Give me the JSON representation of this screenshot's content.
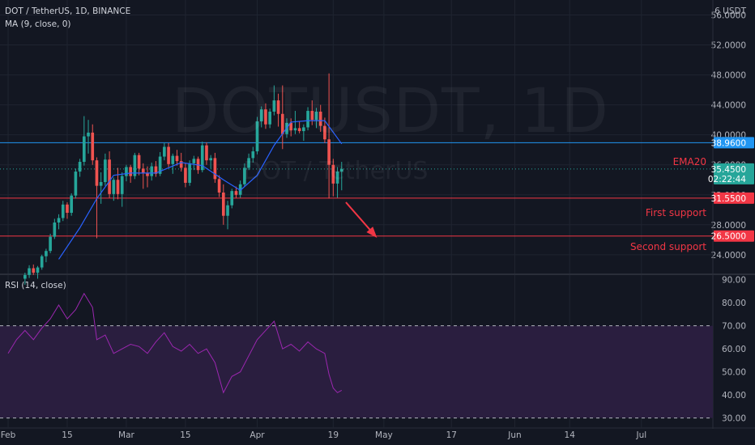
{
  "header": {
    "symbol_line": "DOT / TetherUS, 1D, BINANCE",
    "ma_line": "MA (9, close, 0)",
    "rsi_line": "RSI (14, close)",
    "watermark_main": "DOTUSDT, 1D",
    "watermark_sub": "DOT / TetherUS"
  },
  "annotations": {
    "ema_label": "EMA20",
    "first_support_label": "First support",
    "second_support_label": "Second support"
  },
  "colors": {
    "background": "#131722",
    "grid": "#1f2430",
    "up": "#26a69a",
    "down": "#ef5350",
    "ma": "#2962ff",
    "ema_line": "#2196f3",
    "support_line": "#f23645",
    "rsi_line": "#9c27b0",
    "rsi_band": "#2a1e3f",
    "axis_text": "#b2b5be"
  },
  "chart_data": {
    "type": "candlestick",
    "symbol": "DOT / TetherUS",
    "interval": "1D",
    "exchange": "BINANCE",
    "currency_label": "6 USDT",
    "price_axis": {
      "ticks": [
        "56.0000",
        "52.0000",
        "48.0000",
        "44.0000",
        "40.0000",
        "36.0000",
        "32.0000",
        "28.0000",
        "24.0000"
      ],
      "range": [
        21.5,
        58
      ]
    },
    "price_tags": [
      {
        "value": "38.9600",
        "color": "#2196f3"
      },
      {
        "value": "35.4500",
        "sub": "02:22:44",
        "color": "#26a69a"
      },
      {
        "value": "31.5500",
        "color": "#f23645"
      },
      {
        "value": "26.5000",
        "color": "#f23645"
      }
    ],
    "horizontal_levels": [
      {
        "name": "EMA20",
        "value": 38.96,
        "color": "#2196f3"
      },
      {
        "name": "First support",
        "value": 31.55,
        "color": "#f23645"
      },
      {
        "name": "Second support",
        "value": 26.5,
        "color": "#f23645"
      }
    ],
    "time_axis": {
      "ticks": [
        "Feb",
        "15",
        "Mar",
        "15",
        "Apr",
        "19",
        "May",
        "17",
        "Jun",
        "14",
        "Jul"
      ],
      "start_date": "2021-02-01",
      "end_date": "2021-07-16"
    },
    "candles": [
      {
        "date": "2021-02-05",
        "o": 20.8,
        "h": 21.6,
        "l": 20.0,
        "c": 21.3
      },
      {
        "date": "2021-02-06",
        "o": 21.3,
        "h": 22.6,
        "l": 20.9,
        "c": 22.2
      },
      {
        "date": "2021-02-07",
        "o": 22.2,
        "h": 22.7,
        "l": 21.3,
        "c": 21.6
      },
      {
        "date": "2021-02-08",
        "o": 21.6,
        "h": 22.5,
        "l": 20.8,
        "c": 22.3
      },
      {
        "date": "2021-02-09",
        "o": 22.3,
        "h": 24.0,
        "l": 22.0,
        "c": 23.8
      },
      {
        "date": "2021-02-10",
        "o": 23.8,
        "h": 24.8,
        "l": 23.0,
        "c": 24.5
      },
      {
        "date": "2021-02-11",
        "o": 24.5,
        "h": 26.8,
        "l": 24.2,
        "c": 26.4
      },
      {
        "date": "2021-02-12",
        "o": 26.4,
        "h": 28.8,
        "l": 26.1,
        "c": 28.3
      },
      {
        "date": "2021-02-13",
        "o": 28.3,
        "h": 29.4,
        "l": 27.4,
        "c": 28.9
      },
      {
        "date": "2021-02-14",
        "o": 28.9,
        "h": 31.2,
        "l": 28.5,
        "c": 30.7
      },
      {
        "date": "2021-02-15",
        "o": 30.7,
        "h": 31.0,
        "l": 28.8,
        "c": 29.6
      },
      {
        "date": "2021-02-16",
        "o": 29.6,
        "h": 32.2,
        "l": 29.2,
        "c": 31.9
      },
      {
        "date": "2021-02-17",
        "o": 31.9,
        "h": 35.5,
        "l": 31.5,
        "c": 35.1
      },
      {
        "date": "2021-02-18",
        "o": 35.1,
        "h": 36.8,
        "l": 34.4,
        "c": 36.4
      },
      {
        "date": "2021-02-19",
        "o": 36.4,
        "h": 42.5,
        "l": 35.9,
        "c": 39.8
      },
      {
        "date": "2021-02-20",
        "o": 39.8,
        "h": 42.0,
        "l": 37.5,
        "c": 40.3
      },
      {
        "date": "2021-02-21",
        "o": 40.3,
        "h": 41.4,
        "l": 36.0,
        "c": 36.6
      },
      {
        "date": "2021-02-22",
        "o": 36.6,
        "h": 37.0,
        "l": 26.2,
        "c": 33.2
      },
      {
        "date": "2021-02-23",
        "o": 33.2,
        "h": 35.0,
        "l": 30.8,
        "c": 33.7
      },
      {
        "date": "2021-02-24",
        "o": 33.7,
        "h": 37.5,
        "l": 33.2,
        "c": 36.7
      },
      {
        "date": "2021-02-25",
        "o": 36.7,
        "h": 37.8,
        "l": 31.6,
        "c": 32.1
      },
      {
        "date": "2021-02-26",
        "o": 32.1,
        "h": 34.3,
        "l": 31.2,
        "c": 34.0
      },
      {
        "date": "2021-02-27",
        "o": 34.0,
        "h": 35.6,
        "l": 31.4,
        "c": 32.1
      },
      {
        "date": "2021-02-28",
        "o": 32.1,
        "h": 35.0,
        "l": 30.4,
        "c": 34.5
      },
      {
        "date": "2021-03-01",
        "o": 34.5,
        "h": 36.0,
        "l": 33.8,
        "c": 35.7
      },
      {
        "date": "2021-03-02",
        "o": 35.7,
        "h": 36.0,
        "l": 33.6,
        "c": 34.5
      },
      {
        "date": "2021-03-03",
        "o": 34.5,
        "h": 37.6,
        "l": 34.1,
        "c": 37.3
      },
      {
        "date": "2021-03-04",
        "o": 37.3,
        "h": 37.6,
        "l": 34.6,
        "c": 35.5
      },
      {
        "date": "2021-03-05",
        "o": 35.5,
        "h": 36.2,
        "l": 32.8,
        "c": 34.9
      },
      {
        "date": "2021-03-06",
        "o": 34.9,
        "h": 35.8,
        "l": 33.0,
        "c": 34.5
      },
      {
        "date": "2021-03-07",
        "o": 34.5,
        "h": 36.3,
        "l": 33.9,
        "c": 35.8
      },
      {
        "date": "2021-03-08",
        "o": 35.8,
        "h": 36.5,
        "l": 34.4,
        "c": 34.8
      },
      {
        "date": "2021-03-09",
        "o": 34.8,
        "h": 37.7,
        "l": 34.5,
        "c": 37.1
      },
      {
        "date": "2021-03-10",
        "o": 37.1,
        "h": 38.9,
        "l": 36.6,
        "c": 38.4
      },
      {
        "date": "2021-03-11",
        "o": 38.4,
        "h": 38.9,
        "l": 35.7,
        "c": 36.1
      },
      {
        "date": "2021-03-12",
        "o": 36.1,
        "h": 37.5,
        "l": 34.8,
        "c": 37.2
      },
      {
        "date": "2021-03-13",
        "o": 37.2,
        "h": 38.0,
        "l": 35.9,
        "c": 36.5
      },
      {
        "date": "2021-03-14",
        "o": 36.5,
        "h": 37.6,
        "l": 35.1,
        "c": 35.6
      },
      {
        "date": "2021-03-15",
        "o": 35.6,
        "h": 36.2,
        "l": 33.0,
        "c": 33.6
      },
      {
        "date": "2021-03-16",
        "o": 33.6,
        "h": 36.6,
        "l": 33.2,
        "c": 36.2
      },
      {
        "date": "2021-03-17",
        "o": 36.2,
        "h": 37.2,
        "l": 35.3,
        "c": 36.8
      },
      {
        "date": "2021-03-18",
        "o": 36.8,
        "h": 37.1,
        "l": 34.8,
        "c": 35.3
      },
      {
        "date": "2021-03-19",
        "o": 35.3,
        "h": 39.1,
        "l": 35.0,
        "c": 38.6
      },
      {
        "date": "2021-03-20",
        "o": 38.6,
        "h": 39.0,
        "l": 36.0,
        "c": 36.6
      },
      {
        "date": "2021-03-21",
        "o": 36.6,
        "h": 37.3,
        "l": 35.5,
        "c": 36.9
      },
      {
        "date": "2021-03-22",
        "o": 36.9,
        "h": 37.6,
        "l": 33.6,
        "c": 34.1
      },
      {
        "date": "2021-03-23",
        "o": 34.1,
        "h": 34.6,
        "l": 31.7,
        "c": 32.3
      },
      {
        "date": "2021-03-24",
        "o": 32.3,
        "h": 33.4,
        "l": 28.0,
        "c": 29.2
      },
      {
        "date": "2021-03-25",
        "o": 29.2,
        "h": 31.2,
        "l": 27.4,
        "c": 30.6
      },
      {
        "date": "2021-03-26",
        "o": 30.6,
        "h": 32.8,
        "l": 30.2,
        "c": 32.5
      },
      {
        "date": "2021-03-27",
        "o": 32.5,
        "h": 33.1,
        "l": 31.6,
        "c": 32.0
      },
      {
        "date": "2021-03-28",
        "o": 32.0,
        "h": 33.9,
        "l": 31.6,
        "c": 33.4
      },
      {
        "date": "2021-03-29",
        "o": 33.4,
        "h": 36.2,
        "l": 33.1,
        "c": 35.6
      },
      {
        "date": "2021-03-30",
        "o": 35.6,
        "h": 37.5,
        "l": 35.3,
        "c": 36.9
      },
      {
        "date": "2021-03-31",
        "o": 36.9,
        "h": 38.4,
        "l": 36.3,
        "c": 37.8
      },
      {
        "date": "2021-04-01",
        "o": 37.8,
        "h": 42.4,
        "l": 37.4,
        "c": 41.8
      },
      {
        "date": "2021-04-02",
        "o": 41.8,
        "h": 43.8,
        "l": 41.0,
        "c": 43.4
      },
      {
        "date": "2021-04-03",
        "o": 43.4,
        "h": 44.2,
        "l": 40.8,
        "c": 41.4
      },
      {
        "date": "2021-04-04",
        "o": 41.4,
        "h": 43.5,
        "l": 40.9,
        "c": 43.1
      },
      {
        "date": "2021-04-05",
        "o": 43.1,
        "h": 46.6,
        "l": 42.6,
        "c": 44.6
      },
      {
        "date": "2021-04-06",
        "o": 44.6,
        "h": 45.5,
        "l": 41.1,
        "c": 42.8
      },
      {
        "date": "2021-04-07",
        "o": 42.8,
        "h": 46.6,
        "l": 38.1,
        "c": 40.1
      },
      {
        "date": "2021-04-08",
        "o": 40.1,
        "h": 42.2,
        "l": 39.6,
        "c": 41.6
      },
      {
        "date": "2021-04-09",
        "o": 41.6,
        "h": 42.2,
        "l": 39.8,
        "c": 40.6
      },
      {
        "date": "2021-04-10",
        "o": 40.6,
        "h": 43.2,
        "l": 40.1,
        "c": 40.9
      },
      {
        "date": "2021-04-11",
        "o": 40.9,
        "h": 41.8,
        "l": 40.2,
        "c": 40.5
      },
      {
        "date": "2021-04-12",
        "o": 40.5,
        "h": 41.4,
        "l": 39.2,
        "c": 41.0
      },
      {
        "date": "2021-04-13",
        "o": 41.0,
        "h": 43.7,
        "l": 40.6,
        "c": 43.2
      },
      {
        "date": "2021-04-14",
        "o": 43.2,
        "h": 44.6,
        "l": 41.3,
        "c": 42.0
      },
      {
        "date": "2021-04-15",
        "o": 42.0,
        "h": 43.6,
        "l": 40.9,
        "c": 43.1
      },
      {
        "date": "2021-04-16",
        "o": 43.1,
        "h": 44.0,
        "l": 40.4,
        "c": 41.2
      },
      {
        "date": "2021-04-17",
        "o": 41.2,
        "h": 42.3,
        "l": 38.9,
        "c": 39.4
      },
      {
        "date": "2021-04-18",
        "o": 39.4,
        "h": 48.2,
        "l": 31.5,
        "c": 36.0
      },
      {
        "date": "2021-04-19",
        "o": 36.0,
        "h": 36.8,
        "l": 31.8,
        "c": 33.5
      },
      {
        "date": "2021-04-20",
        "o": 33.5,
        "h": 35.7,
        "l": 31.6,
        "c": 35.1
      },
      {
        "date": "2021-04-21",
        "o": 35.1,
        "h": 36.4,
        "l": 32.6,
        "c": 35.45
      }
    ],
    "ma": {
      "name": "MA (9, close, 0)",
      "values": [
        {
          "date": "2021-02-13",
          "v": 23.4
        },
        {
          "date": "2021-02-18",
          "v": 27.6
        },
        {
          "date": "2021-02-22",
          "v": 31.5
        },
        {
          "date": "2021-02-26",
          "v": 34.6
        },
        {
          "date": "2021-03-02",
          "v": 34.9
        },
        {
          "date": "2021-03-08",
          "v": 34.9
        },
        {
          "date": "2021-03-14",
          "v": 36.3
        },
        {
          "date": "2021-03-19",
          "v": 35.9
        },
        {
          "date": "2021-03-24",
          "v": 34.0
        },
        {
          "date": "2021-03-28",
          "v": 32.6
        },
        {
          "date": "2021-04-01",
          "v": 34.6
        },
        {
          "date": "2021-04-05",
          "v": 38.6
        },
        {
          "date": "2021-04-09",
          "v": 41.7
        },
        {
          "date": "2021-04-13",
          "v": 41.9
        },
        {
          "date": "2021-04-17",
          "v": 41.9
        },
        {
          "date": "2021-04-21",
          "v": 38.8
        }
      ]
    },
    "projection_arrow": {
      "from": {
        "date": "2021-04-22",
        "value": 31.0
      },
      "to": {
        "date": "2021-04-29",
        "value": 26.5
      }
    },
    "rsi": {
      "name": "RSI (14, close)",
      "axis_ticks": [
        "90.00",
        "80.00",
        "70.00",
        "60.00",
        "50.00",
        "40.00",
        "30.00"
      ],
      "range": [
        26,
        92
      ],
      "band": [
        30,
        70
      ],
      "values": [
        {
          "date": "2021-02-01",
          "v": 58
        },
        {
          "date": "2021-02-03",
          "v": 64
        },
        {
          "date": "2021-02-05",
          "v": 68
        },
        {
          "date": "2021-02-07",
          "v": 64
        },
        {
          "date": "2021-02-09",
          "v": 69
        },
        {
          "date": "2021-02-11",
          "v": 73
        },
        {
          "date": "2021-02-13",
          "v": 79
        },
        {
          "date": "2021-02-15",
          "v": 73
        },
        {
          "date": "2021-02-17",
          "v": 77
        },
        {
          "date": "2021-02-19",
          "v": 84
        },
        {
          "date": "2021-02-21",
          "v": 78
        },
        {
          "date": "2021-02-22",
          "v": 64
        },
        {
          "date": "2021-02-24",
          "v": 66
        },
        {
          "date": "2021-02-26",
          "v": 58
        },
        {
          "date": "2021-02-28",
          "v": 60
        },
        {
          "date": "2021-03-02",
          "v": 62
        },
        {
          "date": "2021-03-04",
          "v": 61
        },
        {
          "date": "2021-03-06",
          "v": 58
        },
        {
          "date": "2021-03-08",
          "v": 63
        },
        {
          "date": "2021-03-10",
          "v": 67
        },
        {
          "date": "2021-03-12",
          "v": 61
        },
        {
          "date": "2021-03-14",
          "v": 59
        },
        {
          "date": "2021-03-16",
          "v": 62
        },
        {
          "date": "2021-03-18",
          "v": 58
        },
        {
          "date": "2021-03-20",
          "v": 60
        },
        {
          "date": "2021-03-22",
          "v": 54
        },
        {
          "date": "2021-03-24",
          "v": 41
        },
        {
          "date": "2021-03-26",
          "v": 48
        },
        {
          "date": "2021-03-28",
          "v": 50
        },
        {
          "date": "2021-03-30",
          "v": 57
        },
        {
          "date": "2021-04-01",
          "v": 64
        },
        {
          "date": "2021-04-03",
          "v": 68
        },
        {
          "date": "2021-04-05",
          "v": 72
        },
        {
          "date": "2021-04-07",
          "v": 60
        },
        {
          "date": "2021-04-09",
          "v": 62
        },
        {
          "date": "2021-04-11",
          "v": 59
        },
        {
          "date": "2021-04-13",
          "v": 63
        },
        {
          "date": "2021-04-15",
          "v": 60
        },
        {
          "date": "2021-04-17",
          "v": 58
        },
        {
          "date": "2021-04-18",
          "v": 49
        },
        {
          "date": "2021-04-19",
          "v": 43
        },
        {
          "date": "2021-04-20",
          "v": 41
        },
        {
          "date": "2021-04-21",
          "v": 42
        }
      ]
    }
  }
}
